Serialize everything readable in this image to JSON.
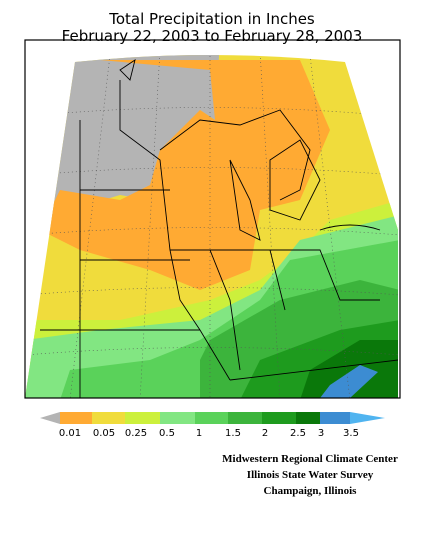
{
  "header": {
    "title": "Total Precipitation in Inches",
    "subtitle": "February 22, 2003 to February 28, 2003"
  },
  "legend": {
    "labels": [
      "0.01",
      "0.05",
      "0.25",
      "0.5",
      "1",
      "1.5",
      "2",
      "2.5",
      "3",
      "3.5"
    ]
  },
  "credits": [
    "Midwestern Regional Climate Center",
    "Illinois State Water Survey",
    "Champaign, Illinois"
  ]
}
